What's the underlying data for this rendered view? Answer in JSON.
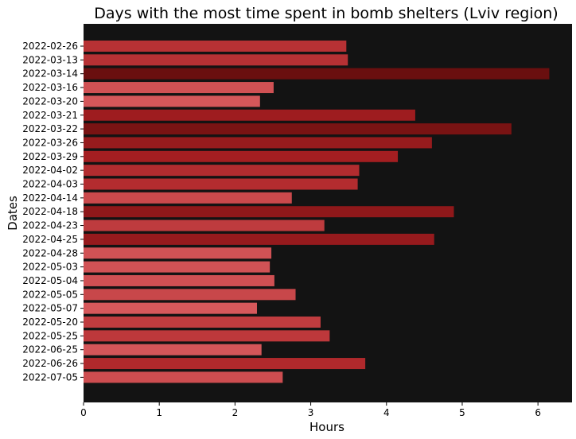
{
  "chart_data": {
    "type": "bar",
    "orientation": "horizontal",
    "title": "Days with the most time spent in bomb shelters (Lviv region)",
    "xlabel": "Hours",
    "ylabel": "Dates",
    "xlim": [
      0,
      6.45
    ],
    "xticks": [
      0,
      1,
      2,
      3,
      4,
      5,
      6
    ],
    "grid": false,
    "legend": "none",
    "background_color": "#131313",
    "color_scale": {
      "low": "#d6585b",
      "mid": "#a81f22",
      "high": "#6a0f0f"
    },
    "categories": [
      "2022-02-26",
      "2022-03-13",
      "2022-03-14",
      "2022-03-16",
      "2022-03-20",
      "2022-03-21",
      "2022-03-22",
      "2022-03-26",
      "2022-03-29",
      "2022-04-02",
      "2022-04-03",
      "2022-04-14",
      "2022-04-18",
      "2022-04-23",
      "2022-04-25",
      "2022-04-28",
      "2022-05-03",
      "2022-05-04",
      "2022-05-05",
      "2022-05-07",
      "2022-05-20",
      "2022-05-25",
      "2022-06-25",
      "2022-06-26",
      "2022-07-05"
    ],
    "values": [
      3.47,
      3.49,
      6.15,
      2.51,
      2.33,
      4.38,
      5.65,
      4.6,
      4.15,
      3.64,
      3.62,
      2.75,
      4.89,
      3.18,
      4.63,
      2.48,
      2.46,
      2.52,
      2.8,
      2.29,
      3.13,
      3.25,
      2.35,
      3.72,
      2.63
    ]
  }
}
